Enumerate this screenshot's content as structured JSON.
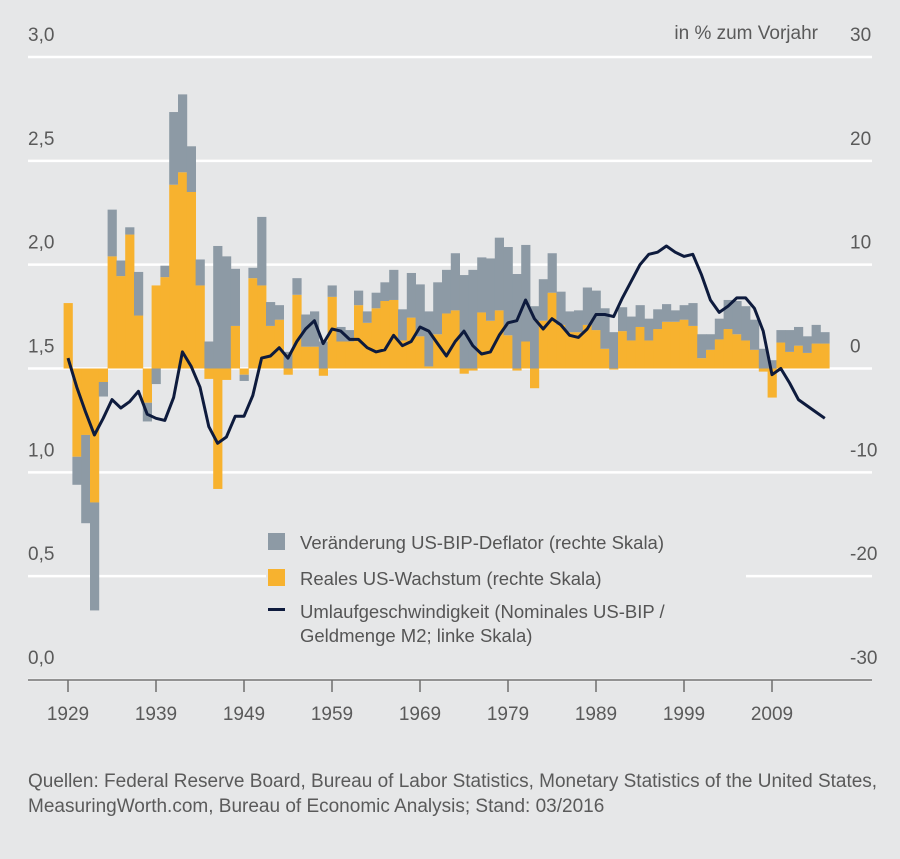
{
  "chart_data": {
    "type": "bar",
    "unit_label": "in % zum Vorjahr",
    "x": [
      1929,
      1930,
      1931,
      1932,
      1933,
      1934,
      1935,
      1936,
      1937,
      1938,
      1939,
      1940,
      1941,
      1942,
      1943,
      1944,
      1945,
      1946,
      1947,
      1948,
      1949,
      1950,
      1951,
      1952,
      1953,
      1954,
      1955,
      1956,
      1957,
      1958,
      1959,
      1960,
      1961,
      1962,
      1963,
      1964,
      1965,
      1966,
      1967,
      1968,
      1969,
      1970,
      1971,
      1972,
      1973,
      1974,
      1975,
      1976,
      1977,
      1978,
      1979,
      1980,
      1981,
      1982,
      1983,
      1984,
      1985,
      1986,
      1987,
      1988,
      1989,
      1990,
      1991,
      1992,
      1993,
      1994,
      1995,
      1996,
      1997,
      1998,
      1999,
      2000,
      2001,
      2002,
      2003,
      2004,
      2005,
      2006,
      2007,
      2008,
      2009,
      2010,
      2011,
      2012,
      2013,
      2014,
      2015
    ],
    "x_ticks": [
      "1929",
      "1939",
      "1949",
      "1959",
      "1969",
      "1979",
      "1989",
      "1999",
      "2009"
    ],
    "y_left": {
      "ticks": [
        "0,0",
        "0,5",
        "1,0",
        "1,5",
        "2,0",
        "2,5",
        "3,0"
      ],
      "range": [
        0,
        3
      ]
    },
    "y_right": {
      "ticks": [
        "-30",
        "-20",
        "-10",
        "0",
        "10",
        "20",
        "30"
      ],
      "range": [
        -30,
        30
      ]
    },
    "grid": true,
    "legend_position": "bottom-right",
    "series": [
      {
        "name": "Veränderung US-BIP-Deflator (rechte Skala)",
        "kind": "stacked-bar",
        "axis": "right",
        "color": "#8d9aa5",
        "values": [
          0.0,
          -2.7,
          -8.5,
          -10.4,
          -1.4,
          4.5,
          1.5,
          0.7,
          4.2,
          -1.8,
          -1.5,
          1.1,
          7.0,
          7.5,
          4.4,
          2.5,
          2.6,
          11.8,
          10.8,
          5.5,
          -0.6,
          1.0,
          6.6,
          2.3,
          1.4,
          1.6,
          1.6,
          3.1,
          3.4,
          2.6,
          1.1,
          1.4,
          1.1,
          1.4,
          1.1,
          1.5,
          1.8,
          2.9,
          3.0,
          4.3,
          5.0,
          5.3,
          5.0,
          4.2,
          5.5,
          9.0,
          9.5,
          5.3,
          6.0,
          7.0,
          8.5,
          9.1,
          9.3,
          6.0,
          4.0,
          3.8,
          3.2,
          2.0,
          2.1,
          3.6,
          3.8,
          3.9,
          3.5,
          2.3,
          2.3,
          2.1,
          2.1,
          1.9,
          1.7,
          1.1,
          1.4,
          2.2,
          2.3,
          1.5,
          2.0,
          2.8,
          3.2,
          3.3,
          2.9,
          1.9,
          0.8,
          1.2,
          2.1,
          1.8,
          1.6,
          1.8,
          1.1
        ]
      },
      {
        "name": "Reales US-Wachstum (rechte Skala)",
        "kind": "stacked-bar",
        "axis": "right",
        "color": "#f7b22f",
        "values": [
          6.3,
          -8.5,
          -6.4,
          -12.9,
          -1.3,
          10.8,
          8.9,
          12.9,
          5.1,
          -3.3,
          8.0,
          8.8,
          17.7,
          18.9,
          17.0,
          8.0,
          -1.0,
          -11.6,
          -1.1,
          4.1,
          -0.6,
          8.7,
          8.0,
          4.1,
          4.7,
          -0.6,
          7.1,
          2.1,
          2.1,
          -0.7,
          6.9,
          2.6,
          2.6,
          6.1,
          4.4,
          5.8,
          6.5,
          6.6,
          2.7,
          4.9,
          3.1,
          0.2,
          3.3,
          5.3,
          5.6,
          -0.5,
          -0.2,
          5.4,
          4.6,
          5.6,
          3.2,
          -0.2,
          2.6,
          -1.9,
          4.6,
          7.3,
          4.2,
          3.5,
          3.5,
          4.2,
          3.7,
          1.9,
          -0.1,
          3.6,
          2.7,
          4.0,
          2.7,
          3.8,
          4.5,
          4.5,
          4.7,
          4.1,
          1.0,
          1.8,
          2.8,
          3.8,
          3.3,
          2.7,
          1.8,
          -0.3,
          -2.8,
          2.5,
          1.6,
          2.2,
          1.5,
          2.4,
          2.4
        ]
      },
      {
        "name": "Umlaufgeschwindigkeit (Nominales US-BIP / Geldmenge M2; linke Skala)",
        "kind": "line",
        "axis": "left",
        "color": "#0e1b3d",
        "values": [
          1.55,
          1.41,
          1.29,
          1.18,
          1.26,
          1.35,
          1.31,
          1.34,
          1.39,
          1.28,
          1.26,
          1.25,
          1.36,
          1.58,
          1.51,
          1.41,
          1.22,
          1.14,
          1.17,
          1.27,
          1.27,
          1.37,
          1.55,
          1.56,
          1.6,
          1.55,
          1.63,
          1.69,
          1.73,
          1.62,
          1.69,
          1.68,
          1.64,
          1.64,
          1.6,
          1.58,
          1.59,
          1.66,
          1.61,
          1.63,
          1.7,
          1.68,
          1.62,
          1.56,
          1.63,
          1.68,
          1.61,
          1.57,
          1.58,
          1.66,
          1.72,
          1.73,
          1.83,
          1.74,
          1.69,
          1.74,
          1.71,
          1.66,
          1.65,
          1.69,
          1.76,
          1.76,
          1.75,
          1.84,
          1.92,
          2.0,
          2.05,
          2.06,
          2.09,
          2.06,
          2.04,
          2.05,
          1.95,
          1.83,
          1.77,
          1.8,
          1.84,
          1.84,
          1.79,
          1.68,
          1.47,
          1.5,
          1.43,
          1.35,
          1.32,
          1.29,
          1.26
        ]
      }
    ]
  },
  "source_note": "Quellen: Federal Reserve Board, Bureau of Labor Statistics, Monetary Statistics of the United States, MeasuringWorth.com, Bureau of Economic Analysis; Stand: 03/2016"
}
